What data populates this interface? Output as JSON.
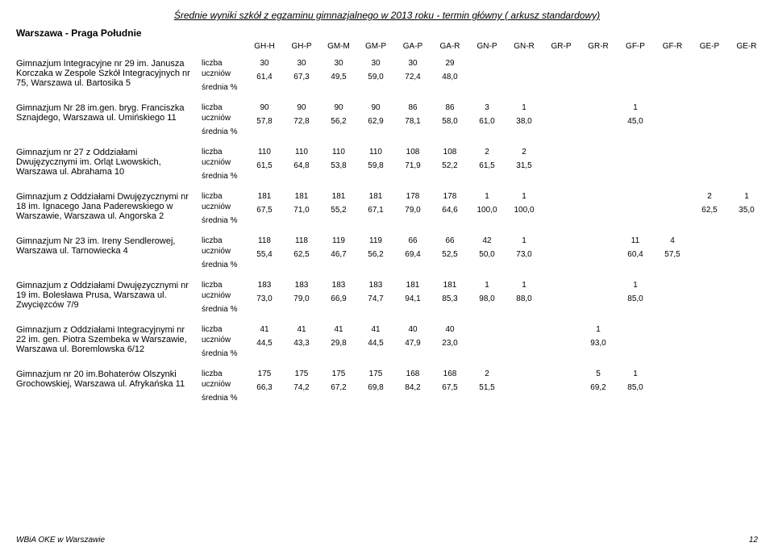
{
  "title": "Średnie wyniki szkół z egzaminu gimnazjalnego w 2013 roku - termin główny ( arkusz standardowy)",
  "district": "Warszawa - Praga Południe",
  "columns": [
    "GH-H",
    "GH-P",
    "GM-M",
    "GM-P",
    "GA-P",
    "GA-R",
    "GN-P",
    "GN-R",
    "GR-P",
    "GR-R",
    "GF-P",
    "GF-R",
    "GE-P",
    "GE-R"
  ],
  "metric_labels": {
    "top1": "liczba",
    "top2": "uczniów",
    "bottom": "średnia %"
  },
  "schools": [
    {
      "name": "Gimnazjum Integracyjne nr 29 im. Janusza Korczaka  w Zespole Szkół Integracyjnych nr 75, Warszawa ul. Bartosika 5",
      "counts": [
        "30",
        "30",
        "30",
        "30",
        "30",
        "29",
        "",
        "",
        "",
        "",
        "",
        "",
        "",
        ""
      ],
      "avgs": [
        "61,4",
        "67,3",
        "49,5",
        "59,0",
        "72,4",
        "48,0",
        "",
        "",
        "",
        "",
        "",
        "",
        "",
        ""
      ]
    },
    {
      "name": "Gimnazjum Nr 28 im.gen. bryg. Franciszka Sznajdego, Warszawa ul. Umińskiego 11",
      "counts": [
        "90",
        "90",
        "90",
        "90",
        "86",
        "86",
        "3",
        "1",
        "",
        "",
        "1",
        "",
        "",
        ""
      ],
      "avgs": [
        "57,8",
        "72,8",
        "56,2",
        "62,9",
        "78,1",
        "58,0",
        "61,0",
        "38,0",
        "",
        "",
        "45,0",
        "",
        "",
        ""
      ]
    },
    {
      "name": "Gimnazjum nr 27 z Oddziałami Dwujęzycznymi im. Orląt Lwowskich, Warszawa ul. Abrahama 10",
      "counts": [
        "110",
        "110",
        "110",
        "110",
        "108",
        "108",
        "2",
        "2",
        "",
        "",
        "",
        "",
        "",
        ""
      ],
      "avgs": [
        "61,5",
        "64,8",
        "53,8",
        "59,8",
        "71,9",
        "52,2",
        "61,5",
        "31,5",
        "",
        "",
        "",
        "",
        "",
        ""
      ]
    },
    {
      "name": "Gimnazjum z Oddziałami Dwujęzycznymi nr 18 im. Ignacego Jana Paderewskiego w Warszawie, Warszawa ul. Angorska 2",
      "counts": [
        "181",
        "181",
        "181",
        "181",
        "178",
        "178",
        "1",
        "1",
        "",
        "",
        "",
        "",
        "2",
        "1"
      ],
      "avgs": [
        "67,5",
        "71,0",
        "55,2",
        "67,1",
        "79,0",
        "64,6",
        "100,0",
        "100,0",
        "",
        "",
        "",
        "",
        "62,5",
        "35,0"
      ]
    },
    {
      "name": "Gimnazjum Nr 23 im. Ireny Sendlerowej, Warszawa ul. Tarnowiecka 4",
      "counts": [
        "118",
        "118",
        "119",
        "119",
        "66",
        "66",
        "42",
        "1",
        "",
        "",
        "11",
        "4",
        "",
        ""
      ],
      "avgs": [
        "55,4",
        "62,5",
        "46,7",
        "56,2",
        "69,4",
        "52,5",
        "50,0",
        "73,0",
        "",
        "",
        "60,4",
        "57,5",
        "",
        ""
      ]
    },
    {
      "name": "Gimnazjum z Oddziałami Dwujęzycznymi nr 19 im. Bolesława Prusa, Warszawa ul. Zwycięzców 7/9",
      "counts": [
        "183",
        "183",
        "183",
        "183",
        "181",
        "181",
        "1",
        "1",
        "",
        "",
        "1",
        "",
        "",
        ""
      ],
      "avgs": [
        "73,0",
        "79,0",
        "66,9",
        "74,7",
        "94,1",
        "85,3",
        "98,0",
        "88,0",
        "",
        "",
        "85,0",
        "",
        "",
        ""
      ]
    },
    {
      "name": "Gimnazjum z Oddziałami Integracyjnymi nr 22 im. gen. Piotra Szembeka w Warszawie, Warszawa ul. Boremlowska 6/12",
      "counts": [
        "41",
        "41",
        "41",
        "41",
        "40",
        "40",
        "",
        "",
        "",
        "1",
        "",
        "",
        "",
        ""
      ],
      "avgs": [
        "44,5",
        "43,3",
        "29,8",
        "44,5",
        "47,9",
        "23,0",
        "",
        "",
        "",
        "93,0",
        "",
        "",
        "",
        ""
      ]
    },
    {
      "name": "Gimnazjum nr 20 im.Bohaterów Olszynki Grochowskiej, Warszawa ul. Afrykańska 11",
      "counts": [
        "175",
        "175",
        "175",
        "175",
        "168",
        "168",
        "2",
        "",
        "",
        "5",
        "1",
        "",
        "",
        ""
      ],
      "avgs": [
        "66,3",
        "74,2",
        "67,2",
        "69,8",
        "84,2",
        "67,5",
        "51,5",
        "",
        "",
        "69,2",
        "85,0",
        "",
        "",
        ""
      ]
    }
  ],
  "footer_left": "WBiA OKE w Warszawie",
  "footer_page": "12"
}
